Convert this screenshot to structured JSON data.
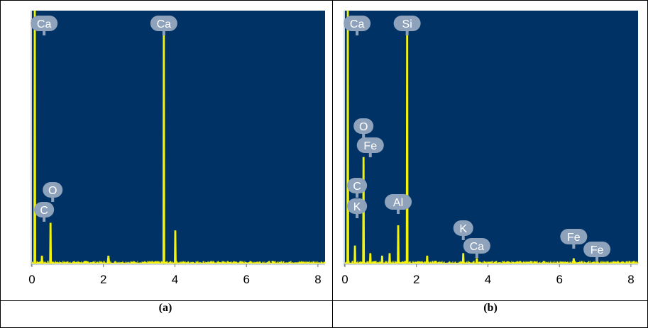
{
  "colors": {
    "plot_background": "#003266",
    "spectrum": "#f4f40a",
    "label_bubble": "#8fa2bb",
    "label_text": "#ffffff",
    "axis_text": "#000000"
  },
  "figure": {
    "panels": [
      {
        "caption": "(a)"
      },
      {
        "caption": "(b)"
      }
    ]
  },
  "chart_data": [
    {
      "type": "line",
      "panel": "(a)",
      "title": "",
      "xlabel": "",
      "ylabel": "",
      "xlim": [
        0,
        8.2
      ],
      "ylim": [
        0,
        100
      ],
      "xticks": [
        "0",
        "2",
        "4",
        "6",
        "8"
      ],
      "grid": false,
      "peaks": [
        {
          "x": 0.08,
          "height": 100,
          "width": 0.06
        },
        {
          "x": 0.28,
          "height": 3,
          "width": 0.05
        },
        {
          "x": 0.52,
          "height": 16,
          "width": 0.05
        },
        {
          "x": 2.14,
          "height": 3,
          "width": 0.08
        },
        {
          "x": 3.69,
          "height": 93,
          "width": 0.04
        },
        {
          "x": 4.01,
          "height": 13,
          "width": 0.06
        }
      ],
      "element_labels": [
        {
          "text": "Ca",
          "x": 0.34
        },
        {
          "text": "Ca",
          "x": 3.69
        },
        {
          "text": "O",
          "x": 0.58
        },
        {
          "text": "C",
          "x": 0.34
        }
      ]
    },
    {
      "type": "line",
      "panel": "(b)",
      "title": "",
      "xlabel": "",
      "ylabel": "",
      "xlim": [
        0,
        8.2
      ],
      "ylim": [
        0,
        100
      ],
      "xticks": [
        "0",
        "2",
        "4",
        "6",
        "8"
      ],
      "grid": false,
      "peaks": [
        {
          "x": 0.08,
          "height": 100,
          "width": 0.05
        },
        {
          "x": 0.28,
          "height": 7,
          "width": 0.05
        },
        {
          "x": 0.52,
          "height": 42,
          "width": 0.04
        },
        {
          "x": 0.71,
          "height": 4,
          "width": 0.05
        },
        {
          "x": 1.04,
          "height": 3,
          "width": 0.06
        },
        {
          "x": 1.25,
          "height": 4,
          "width": 0.05
        },
        {
          "x": 1.49,
          "height": 15,
          "width": 0.04
        },
        {
          "x": 1.74,
          "height": 92,
          "width": 0.035
        },
        {
          "x": 2.3,
          "height": 3,
          "width": 0.06
        },
        {
          "x": 3.31,
          "height": 4,
          "width": 0.05
        },
        {
          "x": 3.69,
          "height": 2,
          "width": 0.05
        },
        {
          "x": 6.4,
          "height": 2,
          "width": 0.07
        }
      ],
      "element_labels": [
        {
          "text": "Ca",
          "x": 0.34
        },
        {
          "text": "Si",
          "x": 1.74
        },
        {
          "text": "O",
          "x": 0.52
        },
        {
          "text": "Fe",
          "x": 0.71
        },
        {
          "text": "C",
          "x": 0.34
        },
        {
          "text": "K",
          "x": 0.34
        },
        {
          "text": "Al",
          "x": 1.49
        },
        {
          "text": "K",
          "x": 3.31
        },
        {
          "text": "Ca",
          "x": 3.69
        },
        {
          "text": "Fe",
          "x": 6.4
        },
        {
          "text": "Fe",
          "x": 7.05
        }
      ]
    }
  ]
}
